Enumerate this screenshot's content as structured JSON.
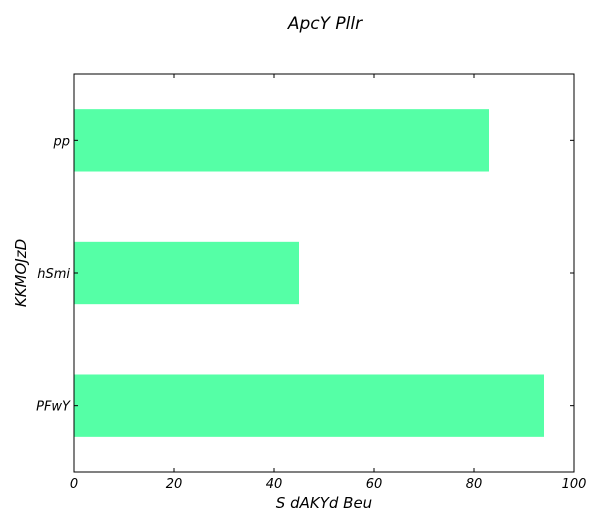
{
  "chart_data": {
    "type": "bar",
    "orientation": "horizontal",
    "title": "ApcY Pllr",
    "xlabel": "S dAKYd  Beu",
    "ylabel": "KKMOJzD",
    "categories": [
      "pp",
      "hSmi",
      "PFwY"
    ],
    "values": [
      83,
      45,
      94
    ],
    "xlim": [
      0,
      100
    ],
    "xticks": [
      0,
      20,
      40,
      60,
      80,
      100
    ],
    "grid": false,
    "legend": "none",
    "bar_color": "#55ffa6"
  }
}
